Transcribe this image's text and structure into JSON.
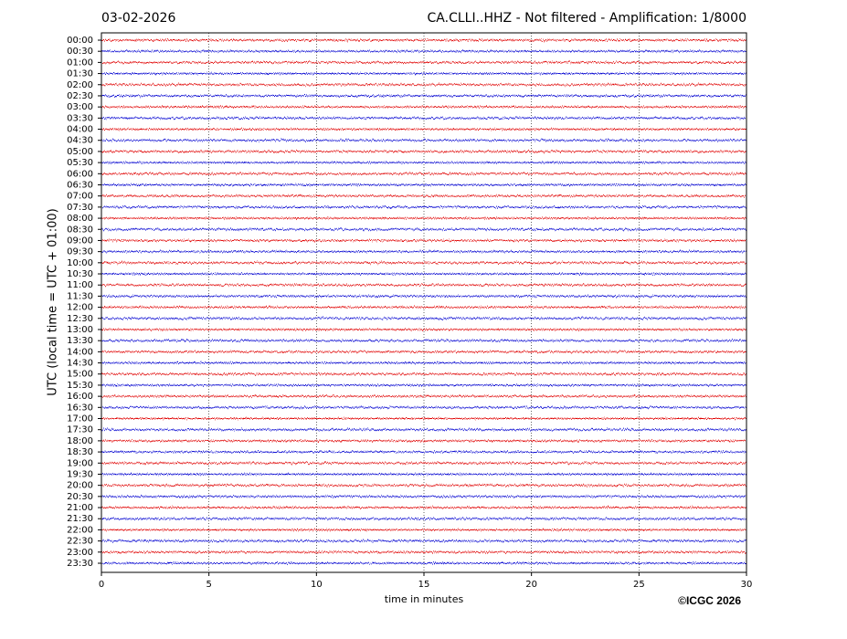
{
  "chart_data": {
    "type": "helicorder",
    "title": "CA.CLLI..HHZ - Not filtered - Amplification: 1/8000",
    "date": "03-02-2026",
    "ylabel": "UTC (local time = UTC + 01:00)",
    "xlabel": "time in minutes",
    "copyright": "©ICGC 2026",
    "categories": [
      "00:00",
      "00:30",
      "01:00",
      "01:30",
      "02:00",
      "02:30",
      "03:00",
      "03:30",
      "04:00",
      "04:30",
      "05:00",
      "05:30",
      "06:00",
      "06:30",
      "07:00",
      "07:30",
      "08:00",
      "08:30",
      "09:00",
      "09:30",
      "10:00",
      "10:30",
      "11:00",
      "11:30",
      "12:00",
      "12:30",
      "13:00",
      "13:30",
      "14:00",
      "14:30",
      "15:00",
      "15:30",
      "16:00",
      "16:30",
      "17:00",
      "17:30",
      "18:00",
      "18:30",
      "19:00",
      "19:30",
      "20:00",
      "20:30",
      "21:00",
      "21:30",
      "22:00",
      "22:30",
      "23:00",
      "23:30"
    ],
    "trace_colors": [
      "#e00000",
      "#0000d0"
    ],
    "xlim": [
      0,
      30
    ],
    "xticks": [
      0,
      5,
      10,
      15,
      20,
      25,
      30
    ],
    "grid": true
  }
}
